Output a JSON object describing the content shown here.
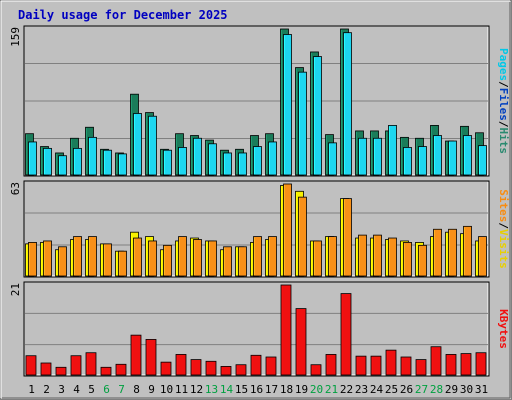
{
  "chart_data": {
    "type": "bar",
    "title": "Daily usage for December 2025",
    "x": [
      "1",
      "2",
      "3",
      "4",
      "5",
      "6",
      "7",
      "8",
      "9",
      "10",
      "11",
      "12",
      "13",
      "14",
      "15",
      "16",
      "17",
      "18",
      "19",
      "20",
      "21",
      "22",
      "23",
      "24",
      "25",
      "26",
      "27",
      "28",
      "29",
      "30",
      "31"
    ],
    "weekend_days": [
      "6",
      "7",
      "13",
      "14",
      "20",
      "21",
      "27",
      "28"
    ],
    "panels": [
      {
        "ymax": 159,
        "ymax_label": "159",
        "series": [
          {
            "name": "Pages",
            "color": "#1a7c5a",
            "values": [
              45,
              31,
              24,
              40,
              52,
              28,
              24,
              88,
              68,
              28,
              45,
              43,
              38,
              27,
              28,
              43,
              45,
              159,
              117,
              134,
              44,
              159,
              48,
              48,
              48,
              41,
              40,
              54,
              37,
              53,
              46
            ]
          },
          {
            "name": "Files",
            "color": "#1ed6f0",
            "values": [
              36,
              29,
              21,
              29,
              41,
              27,
              23,
              67,
              64,
              27,
              30,
              40,
              34,
              24,
              24,
              31,
              36,
              153,
              112,
              129,
              35,
              155,
              40,
              40,
              54,
              30,
              31,
              43,
              37,
              43,
              32
            ]
          },
          {
            "name": "Hits",
            "color": "#2a8a70",
            "values": []
          }
        ],
        "axis_label_parts": [
          {
            "text": "Pages",
            "color": "#00c8e8"
          },
          {
            "text": "/",
            "color": "#000000"
          },
          {
            "text": "Files",
            "color": "#0040c0"
          },
          {
            "text": "/",
            "color": "#000000"
          },
          {
            "text": "Hits",
            "color": "#2a8a70"
          }
        ]
      },
      {
        "ymax": 63,
        "ymax_label": "63",
        "series": [
          {
            "name": "Visits",
            "color": "#f8f000",
            "values": [
              22,
              23,
              18,
              25,
              25,
              22,
              17,
              30,
              27,
              18,
              24,
              26,
              24,
              18,
              20,
              23,
              25,
              62,
              58,
              24,
              27,
              53,
              26,
              26,
              25,
              24,
              23,
              27,
              30,
              29,
              24
            ]
          },
          {
            "name": "Sites",
            "color": "#f89018",
            "values": [
              23,
              24,
              20,
              27,
              27,
              22,
              17,
              26,
              24,
              21,
              27,
              25,
              24,
              20,
              20,
              27,
              27,
              63,
              54,
              24,
              27,
              53,
              28,
              28,
              26,
              23,
              21,
              32,
              32,
              34,
              27
            ]
          }
        ],
        "axis_label_parts": [
          {
            "text": "Sites",
            "color": "#f88c10"
          },
          {
            "text": "/",
            "color": "#000000"
          },
          {
            "text": "Visits",
            "color": "#e8d000"
          }
        ]
      },
      {
        "ymax": 21,
        "ymax_label": "21",
        "series": [
          {
            "name": "KBytes",
            "color": "#f01010",
            "values": [
              4.5,
              2.8,
              1.8,
              4.5,
              5.2,
              1.8,
              2.5,
              9.3,
              8.3,
              3.0,
              4.8,
              3.6,
              3.2,
              2.0,
              2.4,
              4.6,
              4.2,
              21,
              15.5,
              2.4,
              4.8,
              19,
              4.4,
              4.4,
              5.8,
              4.2,
              3.6,
              6.6,
              4.8,
              5.0,
              5.2
            ]
          }
        ],
        "axis_label_parts": [
          {
            "text": "KBytes",
            "color": "#f01010"
          }
        ]
      }
    ]
  }
}
